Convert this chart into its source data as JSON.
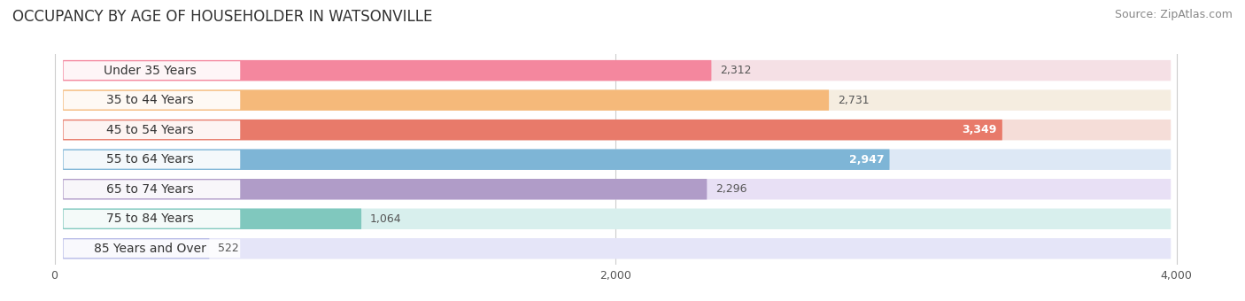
{
  "title": "OCCUPANCY BY AGE OF HOUSEHOLDER IN WATSONVILLE",
  "source": "Source: ZipAtlas.com",
  "categories": [
    "Under 35 Years",
    "35 to 44 Years",
    "45 to 54 Years",
    "55 to 64 Years",
    "65 to 74 Years",
    "75 to 84 Years",
    "85 Years and Over"
  ],
  "values": [
    2312,
    2731,
    3349,
    2947,
    2296,
    1064,
    522
  ],
  "bar_colors": [
    "#f4879e",
    "#f5b97a",
    "#e87a6a",
    "#7eb5d6",
    "#b09cc8",
    "#80c8be",
    "#b8bce8"
  ],
  "bar_bg_colors": [
    "#f5e0e5",
    "#f5ede0",
    "#f5ddd8",
    "#dde8f5",
    "#e8e0f5",
    "#d8efed",
    "#e5e5f8"
  ],
  "value_color_inside": [
    "#e05a7a",
    "#cc7020",
    "#c0504d",
    "#4472c4",
    "#8064a2",
    "#4bacc6",
    "#8080c0"
  ],
  "xlim_min": -150,
  "xlim_max": 4200,
  "xticks": [
    0,
    2000,
    4000
  ],
  "title_fontsize": 12,
  "source_fontsize": 9,
  "bar_label_fontsize": 10,
  "value_fontsize": 9,
  "figwidth": 14.06,
  "figheight": 3.4,
  "dpi": 100,
  "background_color": "#f0f0f0"
}
